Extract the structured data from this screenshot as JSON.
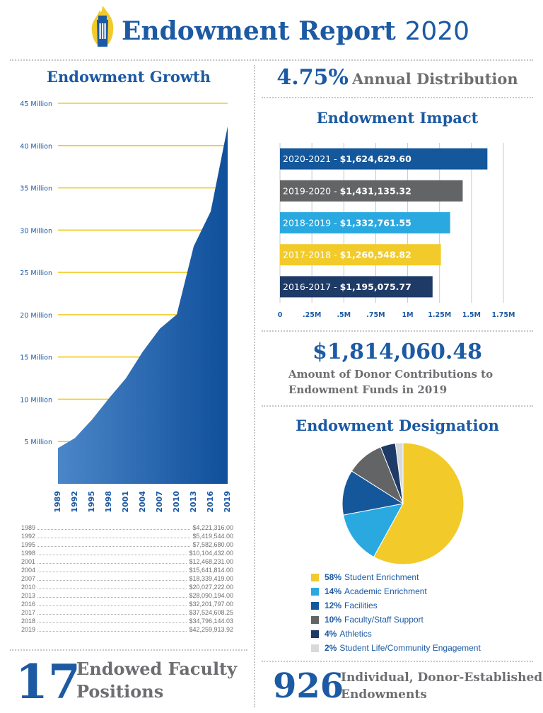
{
  "header": {
    "title_bold": "Endowment Report",
    "title_year": "2020"
  },
  "growth": {
    "heading": "Endowment Growth",
    "table": [
      {
        "year": "1989",
        "amount": "$4,221,316.00"
      },
      {
        "year": "1992",
        "amount": "$5,419,544.00"
      },
      {
        "year": "1995",
        "amount": "$7,582,680.00"
      },
      {
        "year": "1998",
        "amount": "$10,104,432.00"
      },
      {
        "year": "2001",
        "amount": "$12,468,231.00"
      },
      {
        "year": "2004",
        "amount": "$15,641,814.00"
      },
      {
        "year": "2007",
        "amount": "$18,339,419.00"
      },
      {
        "year": "2010",
        "amount": "$20,027,222.00"
      },
      {
        "year": "2013",
        "amount": "$28,090,194.00"
      },
      {
        "year": "2016",
        "amount": "$32,201,797.00"
      },
      {
        "year": "2017",
        "amount": "$37,524,608.25"
      },
      {
        "year": "2018",
        "amount": "$34,796,144.03"
      },
      {
        "year": "2019",
        "amount": "$42,259,913.92"
      }
    ]
  },
  "distribution": {
    "value": "4.75%",
    "label": "Annual Distribution"
  },
  "impact": {
    "heading": "Endowment Impact"
  },
  "contributions": {
    "amount": "$1,814,060.48",
    "line1": "Amount of Donor Contributions to",
    "line2": "Endowment Funds in 2019"
  },
  "designation": {
    "heading": "Endowment Designation"
  },
  "faculty": {
    "number": "17",
    "line1": "Endowed Faculty",
    "line2": "Positions"
  },
  "endowments": {
    "number": "926",
    "line1": "Individual, Donor-Established",
    "line2": "Endowments"
  },
  "colors": {
    "navy": "#1c5aa3",
    "yellow": "#f2cb2a",
    "sky": "#2aa9e0",
    "mid_blue": "#14579b",
    "gray": "#636466",
    "dark_navy": "#1e3a67",
    "light_gray": "#d9d9d9"
  },
  "chart_data": [
    {
      "type": "area",
      "x": [
        "1989",
        "1992",
        "1995",
        "1998",
        "2001",
        "2004",
        "2007",
        "2010",
        "2013",
        "2016",
        "2019"
      ],
      "y": [
        4221316,
        5419544,
        7582680,
        10104432,
        12468231,
        15641814,
        18339419,
        20027222,
        28090194,
        32201797,
        42259914
      ],
      "ylim": [
        0,
        45000000
      ],
      "yticks": [
        5000000,
        10000000,
        15000000,
        20000000,
        25000000,
        30000000,
        35000000,
        40000000,
        45000000
      ],
      "ytick_labels": [
        "5 Million",
        "10 Million",
        "15 Million",
        "20 Million",
        "25 Million",
        "30 Million",
        "35 Million",
        "40 Million",
        "45 Million"
      ],
      "color": "#1c5aa3"
    },
    {
      "type": "bar",
      "orientation": "horizontal",
      "categories": [
        "2020-2021",
        "2019-2020",
        "2018-2019",
        "2017-2018",
        "2016-2017"
      ],
      "labels": [
        "$1,624,629.60",
        "$1,431,135.32",
        "$1,332,761.55",
        "$1,260,548.82",
        "$1,195,075.77"
      ],
      "values": [
        1624629.6,
        1431135.32,
        1332761.55,
        1260548.82,
        1195075.77
      ],
      "colors": [
        "#14579b",
        "#636466",
        "#2aa9e0",
        "#f2cb2a",
        "#1e3a67"
      ],
      "xlim": [
        0,
        1750000
      ],
      "xticks": [
        0,
        250000,
        500000,
        750000,
        1000000,
        1250000,
        1500000,
        1750000
      ],
      "xtick_labels": [
        "0",
        ".25M",
        ".5M",
        ".75M",
        "1M",
        "1.25M",
        "1.5M",
        "1.75M"
      ]
    },
    {
      "type": "pie",
      "slices": [
        {
          "label": "Student Enrichment",
          "pct_label": "58%",
          "value": 58,
          "color": "#f2cb2a"
        },
        {
          "label": "Academic Enrichment",
          "pct_label": "14%",
          "value": 14,
          "color": "#2aa9e0"
        },
        {
          "label": "Facilities",
          "pct_label": "12%",
          "value": 12,
          "color": "#14579b"
        },
        {
          "label": "Faculty/Staff Support",
          "pct_label": "10%",
          "value": 10,
          "color": "#636466"
        },
        {
          "label": "Athletics",
          "pct_label": "4%",
          "value": 4,
          "color": "#1e3a67"
        },
        {
          "label": "Student Life/Community Engagement",
          "pct_label": "2%",
          "value": 2,
          "color": "#d9d9d9"
        }
      ]
    }
  ]
}
